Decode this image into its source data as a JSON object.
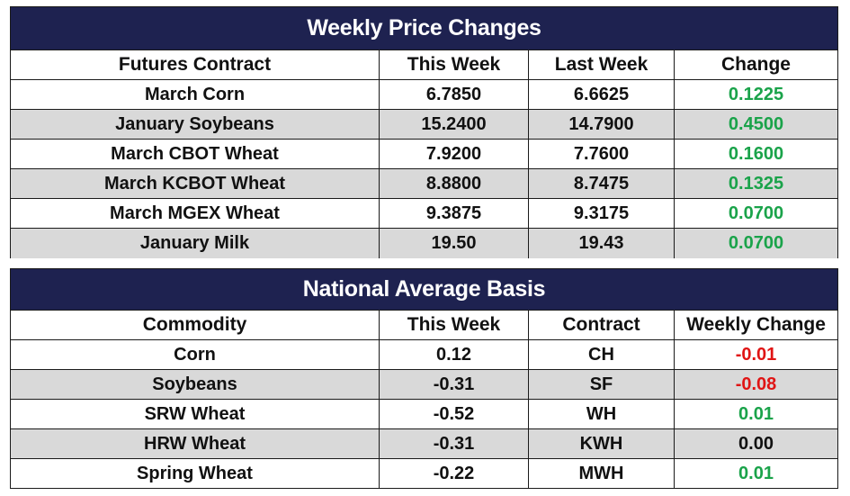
{
  "colors": {
    "header_bg": "#1e2250",
    "alt_row": "#d9d9d9",
    "positive": "#1aa34a",
    "negative": "#e01414"
  },
  "price_table": {
    "title": "Weekly Price Changes",
    "headers": [
      "Futures Contract",
      "This Week",
      "Last Week",
      "Change"
    ],
    "rows": [
      {
        "contract": "March Corn",
        "this_week": "6.7850",
        "last_week": "6.6625",
        "change": "0.1225"
      },
      {
        "contract": "January Soybeans",
        "this_week": "15.2400",
        "last_week": "14.7900",
        "change": "0.4500"
      },
      {
        "contract": "March CBOT Wheat",
        "this_week": "7.9200",
        "last_week": "7.7600",
        "change": "0.1600"
      },
      {
        "contract": "March KCBOT Wheat",
        "this_week": "8.8800",
        "last_week": "8.7475",
        "change": "0.1325"
      },
      {
        "contract": "March MGEX Wheat",
        "this_week": "9.3875",
        "last_week": "9.3175",
        "change": "0.0700"
      },
      {
        "contract": "January Milk",
        "this_week": "19.50",
        "last_week": "19.43",
        "change": "0.0700"
      }
    ]
  },
  "basis_table": {
    "title": "National Average Basis",
    "headers": [
      "Commodity",
      "This Week",
      "Contract",
      "Weekly Change"
    ],
    "rows": [
      {
        "commodity": "Corn",
        "this_week": "0.12",
        "contract": "CH",
        "weekly_change": "-0.01"
      },
      {
        "commodity": "Soybeans",
        "this_week": "-0.31",
        "contract": "SF",
        "weekly_change": "-0.08"
      },
      {
        "commodity": "SRW Wheat",
        "this_week": "-0.52",
        "contract": "WH",
        "weekly_change": "0.01"
      },
      {
        "commodity": "HRW Wheat",
        "this_week": "-0.31",
        "contract": "KWH",
        "weekly_change": "0.00"
      },
      {
        "commodity": "Spring Wheat",
        "this_week": "-0.22",
        "contract": "MWH",
        "weekly_change": "0.01"
      }
    ]
  }
}
